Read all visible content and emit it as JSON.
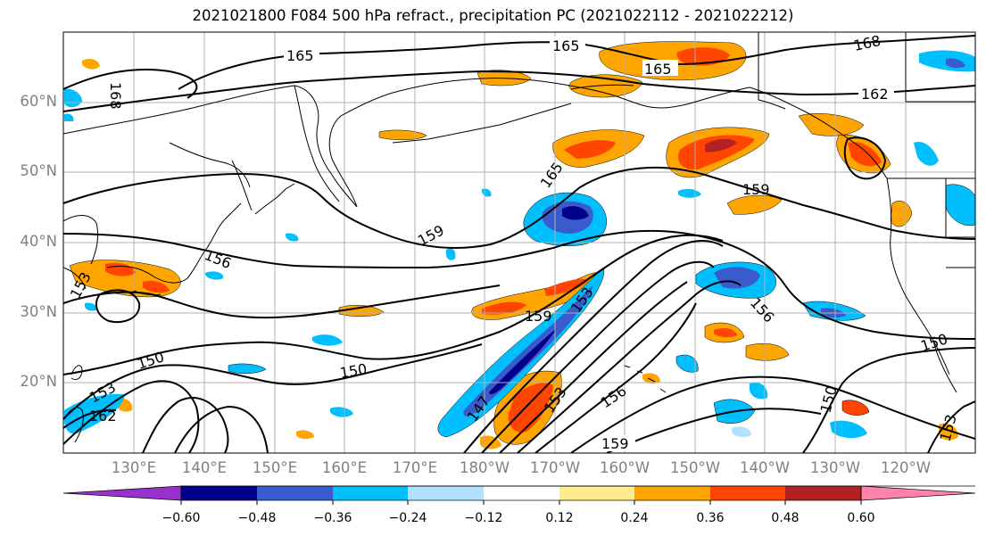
{
  "title": "2021021800 F084 500 hPa refract., precipitation PC (2021022112 - 2021022212)",
  "longitude_labels": [
    "130°E",
    "140°E",
    "150°E",
    "160°E",
    "170°E",
    "180°W",
    "170°W",
    "160°W",
    "150°W",
    "140°W",
    "130°W",
    "120°W"
  ],
  "latitude_labels": [
    "60°N",
    "50°N",
    "40°N",
    "30°N",
    "20°N"
  ],
  "colorbar": {
    "tick_labels": [
      "−0.60",
      "−0.48",
      "−0.36",
      "−0.24",
      "−0.12",
      "0.12",
      "0.24",
      "0.36",
      "0.48",
      "0.60"
    ],
    "colors": [
      "#9932cc",
      "#00008b",
      "#3a5bcb",
      "#00bfff",
      "#b0e2ff",
      "#ffffff",
      "#ffec8b",
      "#ffa500",
      "#ff4500",
      "#b22222",
      "#ff82ab"
    ]
  },
  "contour_labels": [
    "165",
    "165",
    "165",
    "168",
    "162",
    "168",
    "165",
    "159",
    "159",
    "156",
    "153",
    "159",
    "153",
    "156",
    "150",
    "150",
    "153",
    "162",
    "147",
    "153",
    "156",
    "159",
    "150",
    "150",
    "153"
  ],
  "colors": {
    "contour": "#000000",
    "coastline": "#000000",
    "grid": "#b0b0b0",
    "tick_text": "#808080"
  }
}
